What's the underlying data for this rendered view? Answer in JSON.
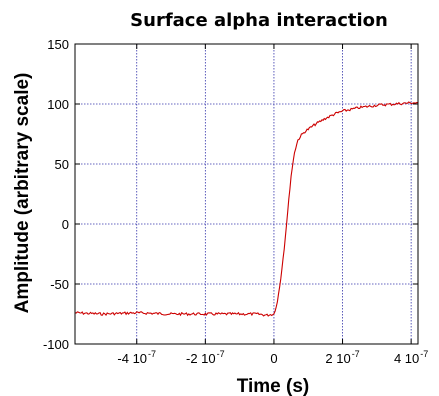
{
  "chart_data": {
    "type": "line",
    "title": "Surface alpha interaction",
    "xlabel": "Time (s)",
    "ylabel": "Amplitude (arbitrary scale)",
    "xlim": [
      -5.8e-07,
      4.2e-07
    ],
    "ylim": [
      -100,
      150
    ],
    "grid": true,
    "grid_style": "dotted",
    "x_ticks": [
      {
        "value": -4e-07,
        "mantissa": "-4 10",
        "exp": "-7"
      },
      {
        "value": -2e-07,
        "mantissa": "-2 10",
        "exp": "-7"
      },
      {
        "value": 0,
        "mantissa": "0",
        "exp": ""
      },
      {
        "value": 2e-07,
        "mantissa": "2 10",
        "exp": "-7"
      },
      {
        "value": 4e-07,
        "mantissa": "4 10",
        "exp": "-7"
      }
    ],
    "y_ticks": [
      {
        "value": -100,
        "label": "-100"
      },
      {
        "value": -50,
        "label": "-50"
      },
      {
        "value": 0,
        "label": "0"
      },
      {
        "value": 50,
        "label": "50"
      },
      {
        "value": 100,
        "label": "100"
      },
      {
        "value": 150,
        "label": "150"
      }
    ],
    "series": [
      {
        "color": "#cc0000",
        "x": [
          -5.8e-07,
          -5e-07,
          -4e-07,
          -3e-07,
          -2e-07,
          -1e-07,
          -5e-08,
          -2e-08,
          0,
          1e-08,
          2e-08,
          3e-08,
          4e-08,
          5e-08,
          6e-08,
          7e-08,
          8e-08,
          9e-08,
          1e-07,
          1.2e-07,
          1.5e-07,
          1.8e-07,
          2e-07,
          2.5e-07,
          3e-07,
          3.5e-07,
          4e-07,
          4.2e-07
        ],
        "y": [
          -74,
          -75,
          -74,
          -75,
          -75,
          -75,
          -75,
          -76,
          -75,
          -65,
          -45,
          -20,
          10,
          40,
          60,
          70,
          74,
          77,
          79,
          83,
          88,
          92,
          94,
          97,
          99,
          100,
          101,
          101
        ]
      }
    ]
  },
  "colors": {
    "grid": "#3333aa",
    "frame": "#000000",
    "line": "#cc0000"
  }
}
